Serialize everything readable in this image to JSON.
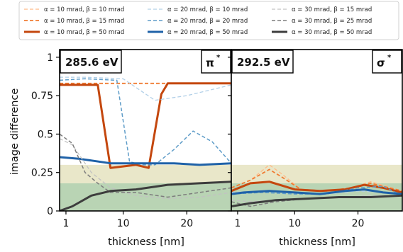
{
  "chart_data": [
    {
      "type": "line",
      "panel_label": "285.6 eV",
      "panel_tag": "π*",
      "xlabel": "thickness [nm]",
      "ylabel": "image difference",
      "xticks": [
        1,
        10,
        20
      ],
      "yticks": [
        0,
        0.25,
        0.5,
        0.75,
        1
      ],
      "yticklabels": [
        "0",
        "0.25",
        "0.5",
        "0.75",
        "1"
      ],
      "xlim": [
        0,
        27
      ],
      "ylim": [
        0,
        1.05
      ],
      "bands": [
        {
          "y0": 0.18,
          "y1": 0.3,
          "color": "#e9e7c9"
        },
        {
          "y0": 0,
          "y1": 0.18,
          "color": "#b9d4b4"
        }
      ],
      "series": [
        {
          "name": "α = 10 mrad, β = 10 mrad",
          "color": "#ffbb88",
          "dash": "dashed",
          "width": 1.3,
          "x": [
            0,
            6,
            10,
            14,
            18,
            22,
            27
          ],
          "y": [
            0.83,
            0.83,
            0.83,
            0.83,
            0.83,
            0.83,
            0.83
          ]
        },
        {
          "name": "α = 10 mrad, β = 15 mrad",
          "color": "#f07c33",
          "dash": "dashed",
          "width": 1.8,
          "x": [
            0,
            6,
            10,
            14,
            18,
            22,
            27
          ],
          "y": [
            0.83,
            0.83,
            0.83,
            0.83,
            0.83,
            0.83,
            0.83
          ]
        },
        {
          "name": "α = 10 mrad, β = 50 mrad",
          "color": "#c4470e",
          "dash": "solid",
          "width": 3,
          "x": [
            0,
            6,
            8,
            12,
            14,
            16,
            17,
            22,
            27
          ],
          "y": [
            0.82,
            0.82,
            0.28,
            0.3,
            0.28,
            0.76,
            0.83,
            0.83,
            0.83
          ]
        },
        {
          "name": "α = 20 mrad, β = 10 mrad",
          "color": "#b2d0e8",
          "dash": "dashed",
          "width": 1.3,
          "x": [
            0,
            4,
            10,
            15,
            20,
            27
          ],
          "y": [
            0.87,
            0.87,
            0.86,
            0.72,
            0.75,
            0.82
          ]
        },
        {
          "name": "α = 20 mrad, β = 20 mrad",
          "color": "#5e9cc8",
          "dash": "dashed",
          "width": 1.5,
          "x": [
            0,
            4,
            9,
            11,
            13,
            15,
            18,
            21,
            24,
            27
          ],
          "y": [
            0.85,
            0.86,
            0.85,
            0.32,
            0.3,
            0.3,
            0.4,
            0.52,
            0.45,
            0.31
          ]
        },
        {
          "name": "α = 20 mrad, β = 50 mrad",
          "color": "#1f62a8",
          "dash": "solid",
          "width": 3,
          "x": [
            0,
            3,
            8,
            14,
            18,
            22,
            27
          ],
          "y": [
            0.35,
            0.34,
            0.31,
            0.31,
            0.31,
            0.3,
            0.31
          ]
        },
        {
          "name": "α = 30 mrad, β = 15 mrad",
          "color": "#c2c2c2",
          "dash": "dashed",
          "width": 1.3,
          "x": [
            0,
            2,
            5,
            8,
            12,
            17,
            22,
            27
          ],
          "y": [
            0.47,
            0.43,
            0.25,
            0.15,
            0.1,
            0.08,
            0.09,
            0.12
          ]
        },
        {
          "name": "α = 30 mrad, β = 25 mrad",
          "color": "#7d7d7d",
          "dash": "dashed",
          "width": 1.5,
          "x": [
            0,
            2,
            4,
            6,
            8,
            12,
            17,
            22,
            27
          ],
          "y": [
            0.5,
            0.44,
            0.25,
            0.18,
            0.12,
            0.12,
            0.09,
            0.12,
            0.15
          ]
        },
        {
          "name": "α = 30 mrad, β = 50 mrad",
          "color": "#3d3d3d",
          "dash": "solid",
          "width": 3,
          "x": [
            0,
            2,
            5,
            8,
            12,
            17,
            22,
            27
          ],
          "y": [
            0.0,
            0.03,
            0.1,
            0.13,
            0.14,
            0.17,
            0.18,
            0.19
          ]
        }
      ]
    },
    {
      "type": "line",
      "panel_label": "292.5 eV",
      "panel_tag": "σ*",
      "xlabel": "thickness [nm]",
      "ylabel": "",
      "xticks": [
        1,
        10,
        20
      ],
      "yticks": [
        0,
        0.25,
        0.5,
        0.75,
        1
      ],
      "yticklabels": [],
      "xlim": [
        0,
        27
      ],
      "ylim": [
        0,
        1.05
      ],
      "bands": [
        {
          "y0": 0.18,
          "y1": 0.3,
          "color": "#e9e7c9"
        },
        {
          "y0": 0,
          "y1": 0.18,
          "color": "#b9d4b4"
        }
      ],
      "series": [
        {
          "name": "α = 10 mrad, β = 10 mrad",
          "color": "#ffbb88",
          "dash": "dashed",
          "width": 1.3,
          "x": [
            0,
            3,
            6,
            8,
            11,
            15,
            19,
            22,
            27
          ],
          "y": [
            0.15,
            0.2,
            0.3,
            0.24,
            0.14,
            0.13,
            0.15,
            0.19,
            0.13
          ]
        },
        {
          "name": "α = 10 mrad, β = 15 mrad",
          "color": "#f07c33",
          "dash": "dashed",
          "width": 1.8,
          "x": [
            0,
            3,
            6,
            8,
            11,
            15,
            19,
            22,
            27
          ],
          "y": [
            0.15,
            0.2,
            0.27,
            0.22,
            0.14,
            0.13,
            0.15,
            0.18,
            0.13
          ]
        },
        {
          "name": "α = 10 mrad, β = 50 mrad",
          "color": "#c4470e",
          "dash": "solid",
          "width": 3,
          "x": [
            0,
            3,
            6,
            10,
            14,
            18,
            21,
            24,
            27
          ],
          "y": [
            0.13,
            0.18,
            0.19,
            0.14,
            0.13,
            0.14,
            0.17,
            0.15,
            0.12
          ]
        },
        {
          "name": "α = 20 mrad, β = 10 mrad",
          "color": "#b2d0e8",
          "dash": "dashed",
          "width": 1.3,
          "x": [
            0,
            5,
            10,
            15,
            20,
            24,
            27
          ],
          "y": [
            0.12,
            0.13,
            0.11,
            0.11,
            0.13,
            0.12,
            0.1
          ]
        },
        {
          "name": "α = 20 mrad, β = 20 mrad",
          "color": "#5e9cc8",
          "dash": "dashed",
          "width": 1.5,
          "x": [
            0,
            5,
            10,
            15,
            20,
            24,
            27
          ],
          "y": [
            0.11,
            0.12,
            0.11,
            0.11,
            0.15,
            0.16,
            0.1
          ]
        },
        {
          "name": "α = 20 mrad, β = 50 mrad",
          "color": "#1f62a8",
          "dash": "solid",
          "width": 3,
          "x": [
            0,
            2,
            6,
            10,
            14,
            18,
            21,
            24,
            27
          ],
          "y": [
            0.11,
            0.12,
            0.13,
            0.12,
            0.11,
            0.13,
            0.14,
            0.12,
            0.11
          ]
        },
        {
          "name": "α = 30 mrad, β = 15 mrad",
          "color": "#c2c2c2",
          "dash": "dashed",
          "width": 1.3,
          "x": [
            0,
            3,
            7,
            12,
            17,
            22,
            27
          ],
          "y": [
            0.07,
            0.06,
            0.07,
            0.08,
            0.09,
            0.1,
            0.1
          ]
        },
        {
          "name": "α = 30 mrad, β = 25 mrad",
          "color": "#7d7d7d",
          "dash": "dashed",
          "width": 1.5,
          "x": [
            0,
            3,
            7,
            12,
            17,
            22,
            27
          ],
          "y": [
            0.06,
            0.03,
            0.06,
            0.08,
            0.09,
            0.09,
            0.1
          ]
        },
        {
          "name": "α = 30 mrad, β = 50 mrad",
          "color": "#3d3d3d",
          "dash": "solid",
          "width": 3,
          "x": [
            0,
            3,
            7,
            12,
            17,
            22,
            27
          ],
          "y": [
            0.03,
            0.05,
            0.07,
            0.08,
            0.09,
            0.09,
            0.1
          ]
        }
      ]
    }
  ]
}
